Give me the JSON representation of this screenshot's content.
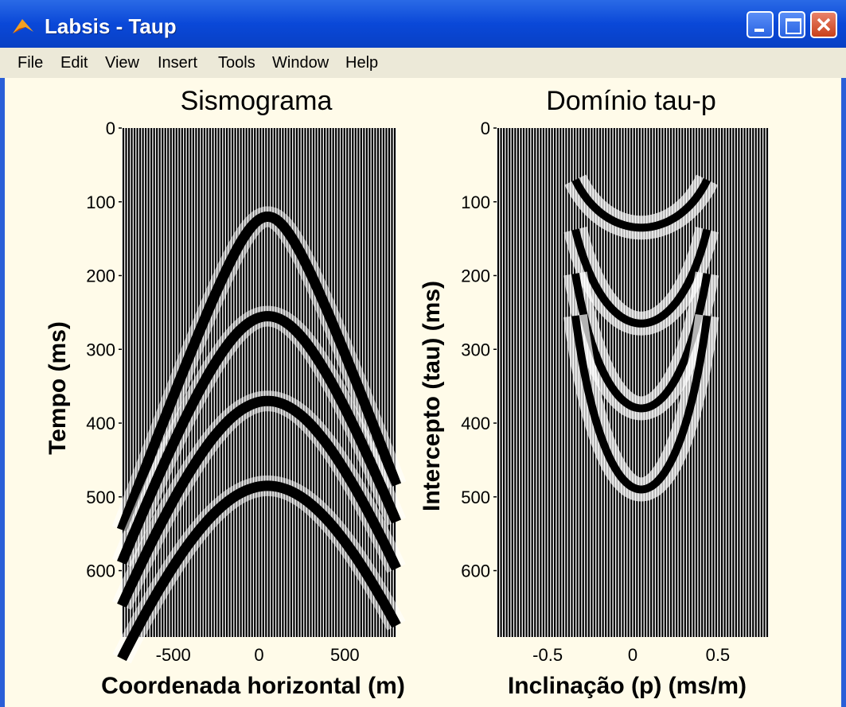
{
  "window": {
    "title": "Labsis - Taup",
    "controls": [
      "minimize-icon",
      "maximize-icon",
      "close-icon"
    ]
  },
  "menu": [
    "File",
    "Edit",
    "View",
    "Insert",
    "Tools",
    "Window",
    "Help"
  ],
  "colors": {
    "titlebar": "#0a48d8",
    "figure_bg": "#fffbe9",
    "trace": "#000000"
  },
  "chart_data": [
    {
      "type": "seismogram",
      "title": "Sismograma",
      "xlabel": "Coordenada horizontal (m)",
      "ylabel": "Tempo (ms)",
      "xlim": [
        -800,
        800
      ],
      "ylim": [
        690,
        0
      ],
      "xticks": [
        "-500",
        "0",
        "500"
      ],
      "yticks": [
        "0",
        "100",
        "200",
        "300",
        "400",
        "500",
        "600"
      ],
      "events": [
        {
          "apex_time_ms": 120,
          "apex_offset_m": 50
        },
        {
          "apex_time_ms": 255,
          "apex_offset_m": 50
        },
        {
          "apex_time_ms": 370,
          "apex_offset_m": 50
        },
        {
          "apex_time_ms": 485,
          "apex_offset_m": 50
        }
      ]
    },
    {
      "type": "seismogram",
      "title": "Domínio tau-p",
      "xlabel": "Inclinação (p) (ms/m)",
      "ylabel": "Intercepto (tau) (ms)",
      "xlim": [
        -0.8,
        0.8
      ],
      "ylim": [
        690,
        0
      ],
      "xticks": [
        "-0.5",
        "0",
        "0.5"
      ],
      "yticks": [
        "0",
        "100",
        "200",
        "300",
        "400",
        "500",
        "600"
      ],
      "events": [
        {
          "tau_ms": 135,
          "p_center": 0.05
        },
        {
          "tau_ms": 265,
          "p_center": 0.05
        },
        {
          "tau_ms": 380,
          "p_center": 0.05
        },
        {
          "tau_ms": 490,
          "p_center": 0.05
        }
      ]
    }
  ]
}
